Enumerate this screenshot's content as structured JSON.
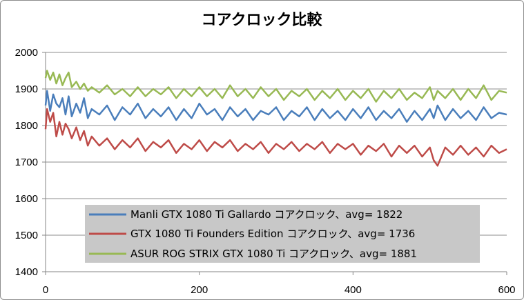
{
  "chart_data": {
    "type": "line",
    "title": "コアクロック比較",
    "xlabel": "",
    "ylabel": "",
    "xlim": [
      0,
      600
    ],
    "ylim": [
      1400,
      2000
    ],
    "x_ticks": [
      0,
      200,
      400,
      600
    ],
    "y_ticks": [
      1400,
      1500,
      1600,
      1700,
      1800,
      1900,
      2000
    ],
    "grid": "horizontal",
    "legend_placement": "bottom-center",
    "x": [
      0,
      2,
      6,
      10,
      14,
      18,
      22,
      26,
      30,
      34,
      40,
      45,
      50,
      55,
      60,
      70,
      80,
      90,
      100,
      110,
      120,
      130,
      140,
      150,
      160,
      170,
      180,
      190,
      200,
      210,
      220,
      230,
      240,
      250,
      260,
      270,
      280,
      290,
      300,
      310,
      320,
      330,
      340,
      350,
      360,
      370,
      380,
      390,
      400,
      410,
      420,
      430,
      440,
      450,
      460,
      470,
      480,
      490,
      500,
      505,
      510,
      520,
      530,
      540,
      550,
      560,
      570,
      580,
      590,
      600
    ],
    "series": [
      {
        "name": "Manli GTX 1080 Ti Gallardo コアクロック、avg= 1822",
        "color": "#4a7ebb",
        "values": [
          1855,
          1895,
          1840,
          1885,
          1860,
          1850,
          1875,
          1830,
          1880,
          1825,
          1860,
          1835,
          1875,
          1820,
          1845,
          1830,
          1855,
          1815,
          1850,
          1830,
          1860,
          1820,
          1845,
          1825,
          1850,
          1815,
          1845,
          1820,
          1860,
          1830,
          1845,
          1815,
          1850,
          1825,
          1845,
          1815,
          1840,
          1830,
          1850,
          1815,
          1840,
          1825,
          1850,
          1815,
          1845,
          1820,
          1840,
          1815,
          1845,
          1820,
          1850,
          1815,
          1840,
          1820,
          1845,
          1810,
          1840,
          1815,
          1845,
          1820,
          1855,
          1815,
          1845,
          1820,
          1840,
          1815,
          1850,
          1820,
          1835,
          1830
        ]
      },
      {
        "name": "GTX 1080 Ti Founders Edition コアクロック、avg= 1736",
        "color": "#be4b48",
        "values": [
          1790,
          1845,
          1810,
          1835,
          1770,
          1810,
          1775,
          1805,
          1790,
          1765,
          1795,
          1760,
          1785,
          1745,
          1770,
          1745,
          1765,
          1735,
          1760,
          1740,
          1765,
          1730,
          1755,
          1740,
          1760,
          1725,
          1750,
          1735,
          1760,
          1730,
          1755,
          1740,
          1760,
          1730,
          1750,
          1735,
          1755,
          1725,
          1750,
          1735,
          1755,
          1730,
          1750,
          1735,
          1755,
          1725,
          1750,
          1735,
          1750,
          1720,
          1745,
          1730,
          1750,
          1715,
          1745,
          1725,
          1745,
          1715,
          1740,
          1705,
          1690,
          1740,
          1720,
          1745,
          1720,
          1740,
          1715,
          1745,
          1725,
          1735
        ]
      },
      {
        "name": "ASUR ROG STRIX GTX 1080 Ti コアクロック、avg= 1881",
        "color": "#98b954",
        "values": [
          1930,
          1950,
          1925,
          1945,
          1915,
          1940,
          1910,
          1930,
          1945,
          1905,
          1920,
          1900,
          1915,
          1895,
          1905,
          1890,
          1910,
          1885,
          1900,
          1880,
          1905,
          1880,
          1900,
          1885,
          1905,
          1875,
          1900,
          1880,
          1905,
          1880,
          1900,
          1875,
          1910,
          1880,
          1900,
          1875,
          1905,
          1880,
          1900,
          1870,
          1895,
          1880,
          1900,
          1870,
          1895,
          1875,
          1900,
          1870,
          1895,
          1875,
          1900,
          1865,
          1895,
          1875,
          1900,
          1870,
          1890,
          1875,
          1905,
          1870,
          1895,
          1875,
          1900,
          1870,
          1900,
          1875,
          1910,
          1870,
          1895,
          1890
        ]
      }
    ]
  }
}
